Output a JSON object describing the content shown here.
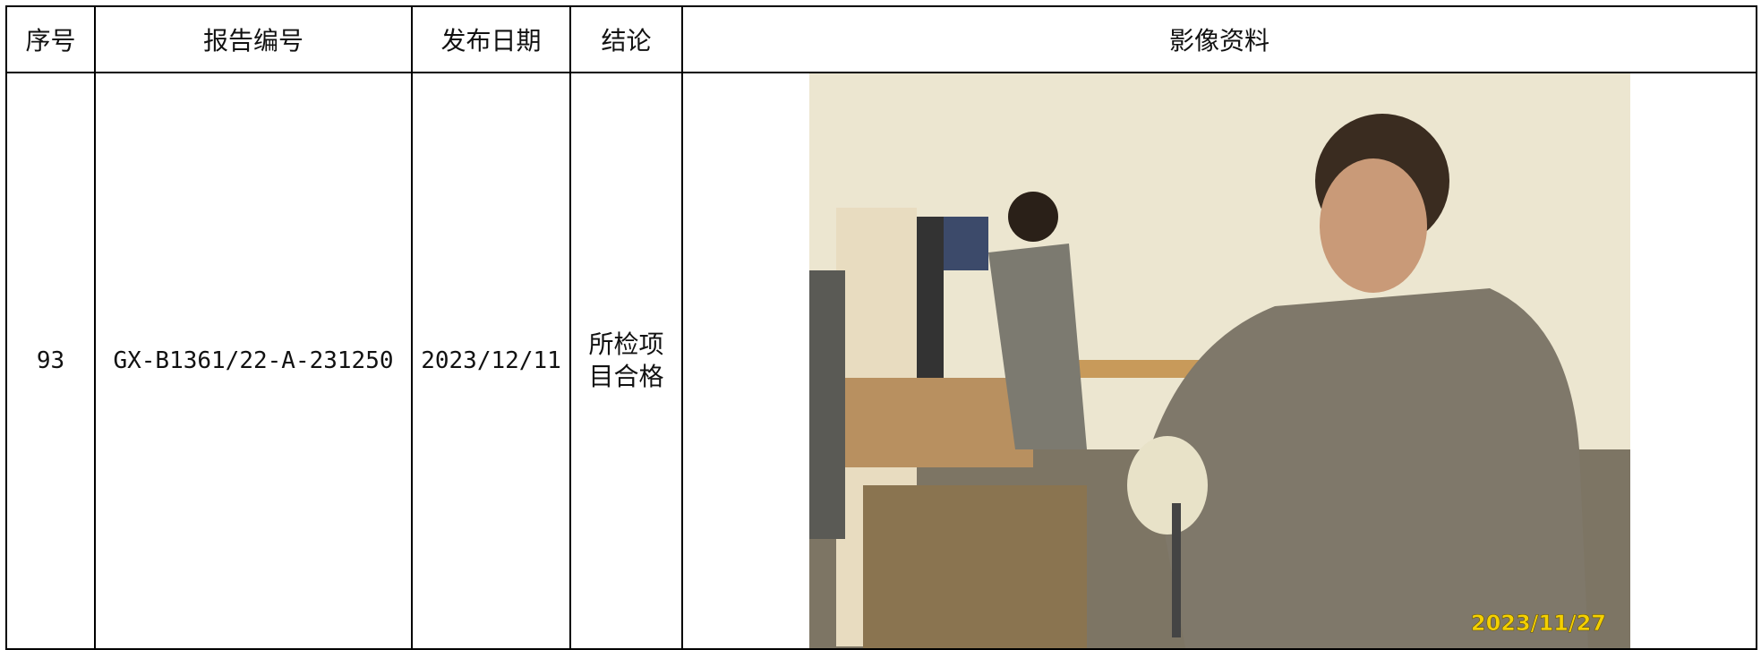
{
  "table": {
    "header": [
      "序号",
      "报告编号",
      "发布日期",
      "结论",
      "影像资料"
    ],
    "rows": [
      [
        "93",
        "GX-B1361/22-A-231250",
        "2023/12/11",
        "所检项目合格"
      ]
    ]
  },
  "photo": {
    "date_stamp": "2023/11/27"
  }
}
